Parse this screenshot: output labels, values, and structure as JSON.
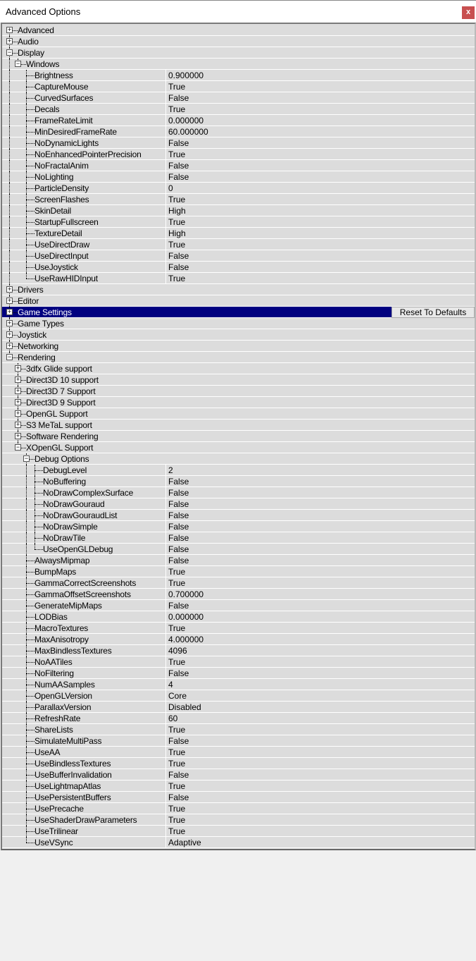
{
  "window": {
    "title": "Advanced Options",
    "close_label": "x"
  },
  "reset_button_label": "Reset To Defaults",
  "rows": [
    {
      "d": 0,
      "t": "+",
      "label": "Advanced"
    },
    {
      "d": 0,
      "t": "+",
      "label": "Audio"
    },
    {
      "d": 0,
      "t": "-",
      "label": "Display"
    },
    {
      "d": 1,
      "t": "-",
      "label": "Windows"
    },
    {
      "d": 2,
      "label": "Brightness",
      "value": "0.900000"
    },
    {
      "d": 2,
      "label": "CaptureMouse",
      "value": "True"
    },
    {
      "d": 2,
      "label": "CurvedSurfaces",
      "value": "False"
    },
    {
      "d": 2,
      "label": "Decals",
      "value": "True"
    },
    {
      "d": 2,
      "label": "FrameRateLimit",
      "value": "0.000000"
    },
    {
      "d": 2,
      "label": "MinDesiredFrameRate",
      "value": "60.000000"
    },
    {
      "d": 2,
      "label": "NoDynamicLights",
      "value": "False"
    },
    {
      "d": 2,
      "label": "NoEnhancedPointerPrecision",
      "value": "True"
    },
    {
      "d": 2,
      "label": "NoFractalAnim",
      "value": "False"
    },
    {
      "d": 2,
      "label": "NoLighting",
      "value": "False"
    },
    {
      "d": 2,
      "label": "ParticleDensity",
      "value": "0"
    },
    {
      "d": 2,
      "label": "ScreenFlashes",
      "value": "True"
    },
    {
      "d": 2,
      "label": "SkinDetail",
      "value": "High"
    },
    {
      "d": 2,
      "label": "StartupFullscreen",
      "value": "True"
    },
    {
      "d": 2,
      "label": "TextureDetail",
      "value": "High"
    },
    {
      "d": 2,
      "label": "UseDirectDraw",
      "value": "True"
    },
    {
      "d": 2,
      "label": "UseDirectInput",
      "value": "False"
    },
    {
      "d": 2,
      "label": "UseJoystick",
      "value": "False"
    },
    {
      "d": 2,
      "label": "UseRawHIDInput",
      "value": "True"
    },
    {
      "d": 0,
      "t": "+",
      "label": "Drivers"
    },
    {
      "d": 0,
      "t": "+",
      "label": "Editor"
    },
    {
      "d": 0,
      "t": "+",
      "label": "Game Settings",
      "selected": true
    },
    {
      "d": 0,
      "t": "+",
      "label": "Game Types"
    },
    {
      "d": 0,
      "t": "+",
      "label": "Joystick"
    },
    {
      "d": 0,
      "t": "+",
      "label": "Networking"
    },
    {
      "d": 0,
      "t": "-",
      "label": "Rendering"
    },
    {
      "d": 1,
      "t": "+",
      "label": "3dfx Glide support"
    },
    {
      "d": 1,
      "t": "+",
      "label": "Direct3D 10 support"
    },
    {
      "d": 1,
      "t": "+",
      "label": "Direct3D 7 Support"
    },
    {
      "d": 1,
      "t": "+",
      "label": "Direct3D 9 Support"
    },
    {
      "d": 1,
      "t": "+",
      "label": "OpenGL Support"
    },
    {
      "d": 1,
      "t": "+",
      "label": "S3 MeTaL support"
    },
    {
      "d": 1,
      "t": "+",
      "label": "Software Rendering"
    },
    {
      "d": 1,
      "t": "-",
      "label": "XOpenGL Support"
    },
    {
      "d": 2,
      "t": "-",
      "label": "Debug Options"
    },
    {
      "d": 3,
      "label": "DebugLevel",
      "value": "2"
    },
    {
      "d": 3,
      "label": "NoBuffering",
      "value": "False"
    },
    {
      "d": 3,
      "label": "NoDrawComplexSurface",
      "value": "False"
    },
    {
      "d": 3,
      "label": "NoDrawGouraud",
      "value": "False"
    },
    {
      "d": 3,
      "label": "NoDrawGouraudList",
      "value": "False"
    },
    {
      "d": 3,
      "label": "NoDrawSimple",
      "value": "False"
    },
    {
      "d": 3,
      "label": "NoDrawTile",
      "value": "False"
    },
    {
      "d": 3,
      "label": "UseOpenGLDebug",
      "value": "False"
    },
    {
      "d": 2,
      "label": "AlwaysMipmap",
      "value": "False"
    },
    {
      "d": 2,
      "label": "BumpMaps",
      "value": "True"
    },
    {
      "d": 2,
      "label": "GammaCorrectScreenshots",
      "value": "True"
    },
    {
      "d": 2,
      "label": "GammaOffsetScreenshots",
      "value": "0.700000"
    },
    {
      "d": 2,
      "label": "GenerateMipMaps",
      "value": "False"
    },
    {
      "d": 2,
      "label": "LODBias",
      "value": "0.000000"
    },
    {
      "d": 2,
      "label": "MacroTextures",
      "value": "True"
    },
    {
      "d": 2,
      "label": "MaxAnisotropy",
      "value": "4.000000"
    },
    {
      "d": 2,
      "label": "MaxBindlessTextures",
      "value": "4096"
    },
    {
      "d": 2,
      "label": "NoAATiles",
      "value": "True"
    },
    {
      "d": 2,
      "label": "NoFiltering",
      "value": "False"
    },
    {
      "d": 2,
      "label": "NumAASamples",
      "value": "4"
    },
    {
      "d": 2,
      "label": "OpenGLVersion",
      "value": "Core"
    },
    {
      "d": 2,
      "label": "ParallaxVersion",
      "value": "Disabled"
    },
    {
      "d": 2,
      "label": "RefreshRate",
      "value": "60"
    },
    {
      "d": 2,
      "label": "ShareLists",
      "value": "True"
    },
    {
      "d": 2,
      "label": "SimulateMultiPass",
      "value": "False"
    },
    {
      "d": 2,
      "label": "UseAA",
      "value": "True"
    },
    {
      "d": 2,
      "label": "UseBindlessTextures",
      "value": "True"
    },
    {
      "d": 2,
      "label": "UseBufferInvalidation",
      "value": "False"
    },
    {
      "d": 2,
      "label": "UseLightmapAtlas",
      "value": "True"
    },
    {
      "d": 2,
      "label": "UsePersistentBuffers",
      "value": "False"
    },
    {
      "d": 2,
      "label": "UsePrecache",
      "value": "True"
    },
    {
      "d": 2,
      "label": "UseShaderDrawParameters",
      "value": "True"
    },
    {
      "d": 2,
      "label": "UseTrilinear",
      "value": "True"
    },
    {
      "d": 2,
      "label": "UseVSync",
      "value": "Adaptive"
    }
  ],
  "colors": {
    "selection": "#000080",
    "close": "#c85050",
    "row": "#dcdcdc"
  }
}
